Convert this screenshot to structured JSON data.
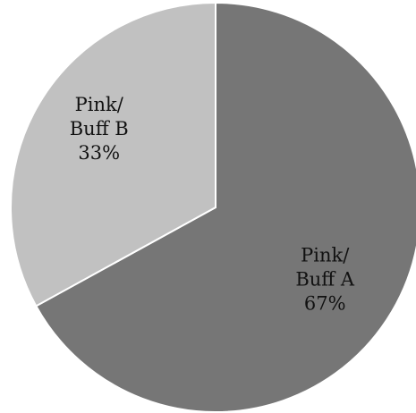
{
  "chart_data": {
    "type": "pie",
    "slices": [
      {
        "label_lines": [
          "Pink/",
          "Buff A"
        ],
        "value": 67,
        "value_label": "67%",
        "color": "#767676"
      },
      {
        "label_lines": [
          "Pink/",
          "Buff B"
        ],
        "value": 33,
        "value_label": "33%",
        "color": "#c1c1c1"
      }
    ],
    "start": "top",
    "direction": "clockwise",
    "slice_border_color": "#ffffff"
  }
}
